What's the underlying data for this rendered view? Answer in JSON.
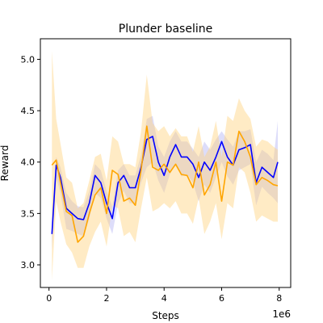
{
  "chart_data": {
    "type": "line",
    "title": "Plunder baseline",
    "xlabel": "Steps",
    "ylabel": "Reward",
    "x_offset_label": "1e6",
    "xlim": [
      -0.3,
      8.4
    ],
    "ylim": [
      2.78,
      5.2
    ],
    "xticks": [
      0,
      2,
      4,
      6,
      8
    ],
    "yticks": [
      3.0,
      3.5,
      4.0,
      4.5,
      5.0
    ],
    "xtick_labels": [
      "0",
      "2",
      "4",
      "6",
      "8"
    ],
    "ytick_labels": [
      "3.0",
      "3.5",
      "4.0",
      "4.5",
      "5.0"
    ],
    "grid": false,
    "legend": "none",
    "x": [
      0.1,
      0.25,
      0.4,
      0.6,
      0.8,
      1.0,
      1.2,
      1.4,
      1.6,
      1.8,
      2.0,
      2.2,
      2.4,
      2.6,
      2.8,
      3.0,
      3.2,
      3.4,
      3.6,
      3.8,
      4.0,
      4.2,
      4.4,
      4.6,
      4.8,
      5.0,
      5.2,
      5.4,
      5.6,
      5.8,
      6.0,
      6.2,
      6.4,
      6.6,
      6.8,
      7.0,
      7.2,
      7.4,
      7.6,
      7.8,
      7.95
    ],
    "series": [
      {
        "color": "#0000ff",
        "band_color": "#b4b4f5",
        "values": [
          3.3,
          3.97,
          3.85,
          3.55,
          3.5,
          3.45,
          3.44,
          3.6,
          3.87,
          3.8,
          3.6,
          3.45,
          3.8,
          3.87,
          3.75,
          3.75,
          3.95,
          4.22,
          4.25,
          4.0,
          3.87,
          4.05,
          4.17,
          4.05,
          4.05,
          3.98,
          3.85,
          4.0,
          3.92,
          4.05,
          4.2,
          4.05,
          3.97,
          4.12,
          4.14,
          4.17,
          3.8,
          3.95,
          3.9,
          3.85,
          4.0
        ],
        "upper": [
          3.45,
          4.05,
          3.95,
          3.7,
          3.62,
          3.57,
          3.56,
          3.72,
          3.98,
          3.92,
          3.72,
          3.57,
          3.92,
          3.98,
          3.87,
          3.87,
          4.07,
          4.42,
          4.45,
          4.15,
          4.05,
          4.2,
          4.3,
          4.2,
          4.2,
          4.13,
          4.05,
          4.2,
          4.12,
          4.22,
          4.3,
          4.22,
          4.15,
          4.3,
          4.3,
          4.32,
          4.0,
          4.12,
          4.08,
          4.02,
          4.4
        ],
        "lower": [
          3.15,
          3.85,
          3.7,
          3.35,
          3.33,
          3.3,
          3.28,
          3.45,
          3.7,
          3.65,
          3.45,
          3.3,
          3.6,
          3.72,
          3.6,
          3.6,
          3.8,
          3.95,
          4.0,
          3.82,
          3.7,
          3.88,
          3.98,
          3.86,
          3.88,
          3.8,
          3.62,
          3.78,
          3.7,
          3.85,
          4.0,
          3.86,
          3.78,
          3.92,
          3.95,
          3.98,
          3.58,
          3.76,
          3.7,
          3.65,
          3.6
        ]
      },
      {
        "color": "#ffa500",
        "band_color": "#ffd27f",
        "values": [
          3.97,
          4.02,
          3.8,
          3.52,
          3.48,
          3.22,
          3.28,
          3.5,
          3.68,
          3.75,
          3.5,
          3.92,
          3.88,
          3.62,
          3.65,
          3.58,
          3.92,
          4.35,
          3.95,
          3.92,
          3.98,
          3.9,
          3.98,
          3.88,
          3.87,
          3.75,
          4.0,
          3.68,
          3.78,
          4.0,
          3.62,
          4.0,
          3.97,
          4.3,
          4.2,
          4.05,
          3.78,
          3.85,
          3.82,
          3.78,
          3.77
        ],
        "upper": [
          5.08,
          4.42,
          4.18,
          3.85,
          3.8,
          3.55,
          3.6,
          3.82,
          4.05,
          4.08,
          3.82,
          4.25,
          4.2,
          3.98,
          3.98,
          3.95,
          4.3,
          4.85,
          4.38,
          4.3,
          4.35,
          4.25,
          4.33,
          4.25,
          4.25,
          4.1,
          4.35,
          4.05,
          4.15,
          4.4,
          4.05,
          4.45,
          4.4,
          4.62,
          4.5,
          4.42,
          4.15,
          4.22,
          4.2,
          4.15,
          4.12
        ],
        "lower": [
          2.85,
          3.62,
          3.42,
          3.2,
          3.12,
          2.97,
          2.97,
          3.18,
          3.32,
          3.42,
          3.18,
          3.58,
          3.55,
          3.28,
          3.32,
          3.22,
          3.55,
          3.85,
          3.52,
          3.55,
          3.6,
          3.55,
          3.62,
          3.5,
          3.5,
          3.4,
          3.65,
          3.3,
          3.42,
          3.6,
          3.25,
          3.6,
          3.55,
          3.95,
          3.9,
          3.7,
          3.42,
          3.48,
          3.45,
          3.42,
          3.42
        ]
      }
    ]
  }
}
